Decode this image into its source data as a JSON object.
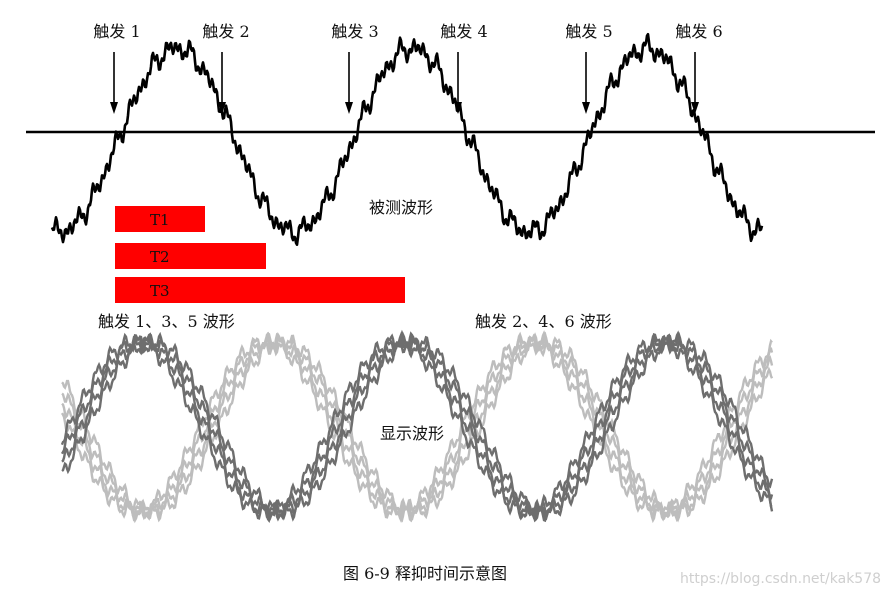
{
  "triggers": [
    "触发 1",
    "触发 2",
    "触发 3",
    "触发 4",
    "触发 5",
    "触发 6"
  ],
  "measured_label": "被测波形",
  "holdoff_bars": [
    {
      "label": "T1",
      "color": "#ff0000"
    },
    {
      "label": "T2",
      "color": "#ff0000"
    },
    {
      "label": "T3",
      "color": "#ff0000"
    }
  ],
  "group_label_odd": "触发 1、3、5 波形",
  "group_label_even": "触发 2、4、6 波形",
  "display_label": "显示波形",
  "caption": "图 6-9  释抑时间示意图",
  "watermark": "https://blog.csdn.net/kak578",
  "colors": {
    "bar": "#ff0000",
    "dark_trace": "#6e6e6e",
    "light_trace": "#bdbdbd",
    "signal": "#000000"
  }
}
